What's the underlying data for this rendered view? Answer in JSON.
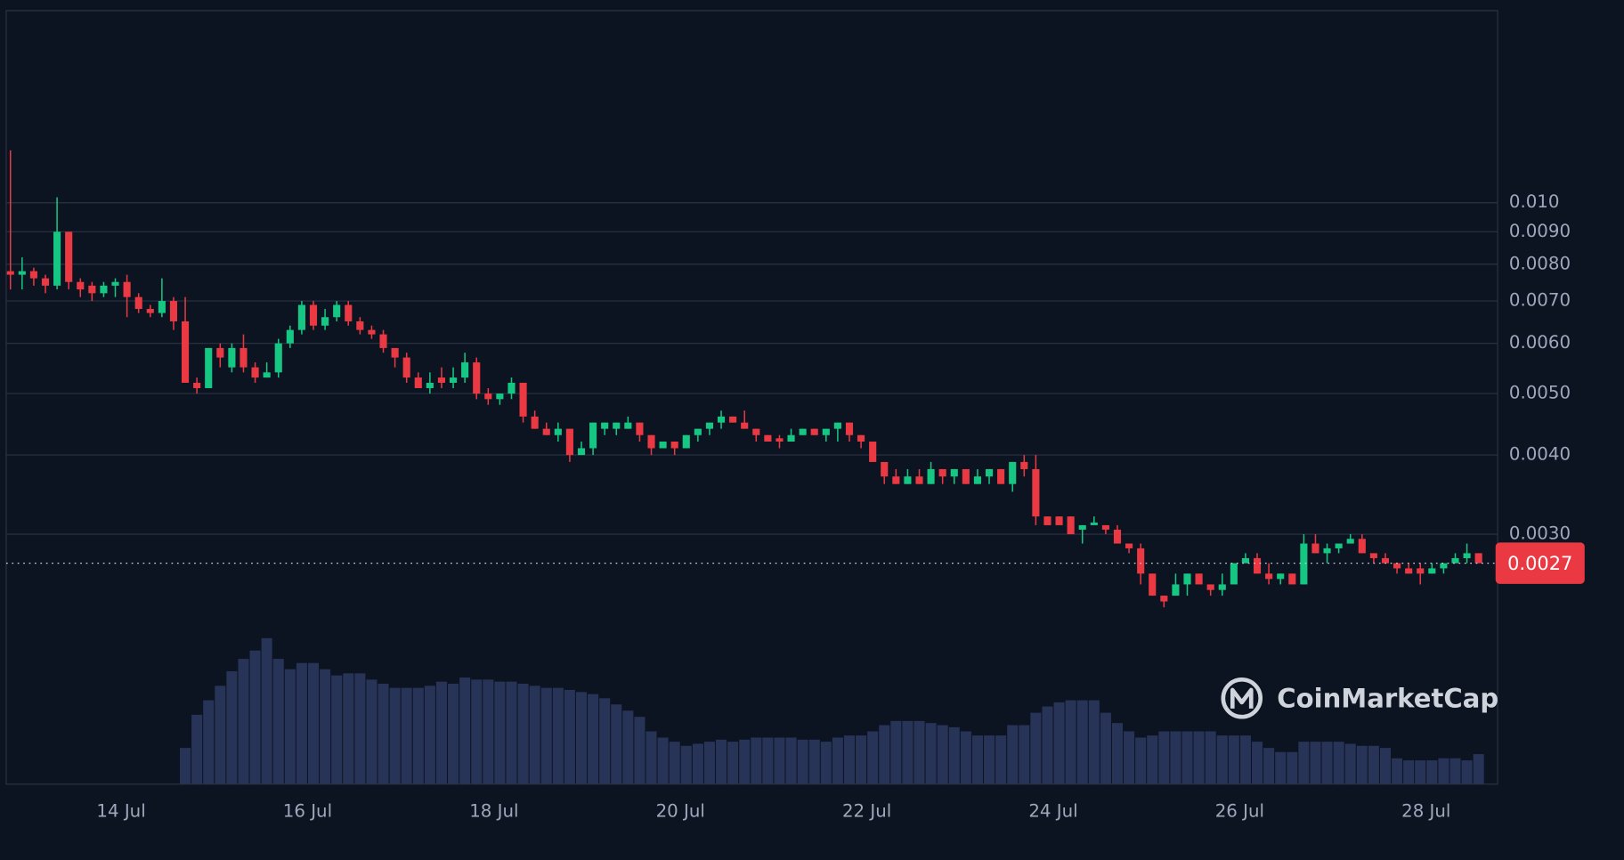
{
  "chart_data": {
    "type": "candlestick",
    "log_scale": true,
    "grid": true,
    "up_color": "#16c784",
    "down_color": "#ea3943",
    "volume_color": "#283358",
    "watermark": "CoinMarketCap",
    "last_price": 0.0027,
    "xlim": [
      12.767,
      28.767
    ],
    "ylim": [
      0.00121,
      0.0201
    ],
    "xticks": [
      {
        "value": 14,
        "label": "14 Jul"
      },
      {
        "value": 16,
        "label": "16 Jul"
      },
      {
        "value": 18,
        "label": "18 Jul"
      },
      {
        "value": 20,
        "label": "20 Jul"
      },
      {
        "value": 22,
        "label": "22 Jul"
      },
      {
        "value": 24,
        "label": "24 Jul"
      },
      {
        "value": 26,
        "label": "26 Jul"
      },
      {
        "value": 28,
        "label": "28 Jul"
      }
    ],
    "yticks": [
      {
        "value": 0.003,
        "label": "0.0030"
      },
      {
        "value": 0.004,
        "label": "0.0040"
      },
      {
        "value": 0.005,
        "label": "0.0050"
      },
      {
        "value": 0.006,
        "label": "0.0060"
      },
      {
        "value": 0.007,
        "label": "0.0070"
      },
      {
        "value": 0.008,
        "label": "0.0080"
      },
      {
        "value": 0.009,
        "label": "0.0090"
      },
      {
        "value": 0.01,
        "label": "0.010"
      }
    ],
    "x": [
      12.8125,
      12.9375,
      13.0625,
      13.1875,
      13.3125,
      13.4375,
      13.5625,
      13.6875,
      13.8125,
      13.9375,
      14.0625,
      14.1875,
      14.3125,
      14.4375,
      14.5625,
      14.6875,
      14.8125,
      14.9375,
      15.0625,
      15.1875,
      15.3125,
      15.4375,
      15.5625,
      15.6875,
      15.8125,
      15.9375,
      16.0625,
      16.1875,
      16.3125,
      16.4375,
      16.5625,
      16.6875,
      16.8125,
      16.9375,
      17.0625,
      17.1875,
      17.3125,
      17.4375,
      17.5625,
      17.6875,
      17.8125,
      17.9375,
      18.0625,
      18.1875,
      18.3125,
      18.4375,
      18.5625,
      18.6875,
      18.8125,
      18.9375,
      19.0625,
      19.1875,
      19.3125,
      19.4375,
      19.5625,
      19.6875,
      19.8125,
      19.9375,
      20.0625,
      20.1875,
      20.3125,
      20.4375,
      20.5625,
      20.6875,
      20.8125,
      20.9375,
      21.0625,
      21.1875,
      21.3125,
      21.4375,
      21.5625,
      21.6875,
      21.8125,
      21.9375,
      22.0625,
      22.1875,
      22.3125,
      22.4375,
      22.5625,
      22.6875,
      22.8125,
      22.9375,
      23.0625,
      23.1875,
      23.3125,
      23.4375,
      23.5625,
      23.6875,
      23.8125,
      23.9375,
      24.0625,
      24.1875,
      24.3125,
      24.4375,
      24.5625,
      24.6875,
      24.8125,
      24.9375,
      25.0625,
      25.1875,
      25.3125,
      25.4375,
      25.5625,
      25.6875,
      25.8125,
      25.9375,
      26.0625,
      26.1875,
      26.3125,
      26.4375,
      26.5625,
      26.6875,
      26.8125,
      26.9375,
      27.0625,
      27.1875,
      27.3125,
      27.4375,
      27.5625,
      27.6875,
      27.8125,
      27.9375,
      28.0625,
      28.1875,
      28.3125,
      28.4375,
      28.5625
    ],
    "open": [
      0.0078,
      0.0077,
      0.0078,
      0.0076,
      0.0074,
      0.009,
      0.0075,
      0.0074,
      0.0072,
      0.0074,
      0.0075,
      0.0071,
      0.0068,
      0.0067,
      0.007,
      0.0065,
      0.0052,
      0.0051,
      0.0059,
      0.0055,
      0.0059,
      0.0055,
      0.0053,
      0.0054,
      0.006,
      0.0063,
      0.0069,
      0.0064,
      0.0066,
      0.0069,
      0.0065,
      0.0063,
      0.0062,
      0.0059,
      0.0057,
      0.0053,
      0.0051,
      0.0053,
      0.0052,
      0.0053,
      0.0056,
      0.005,
      0.0049,
      0.005,
      0.0052,
      0.0046,
      0.0044,
      0.0043,
      0.0044,
      0.004,
      0.0041,
      0.0044,
      0.0044,
      0.0044,
      0.0045,
      0.0043,
      0.0041,
      0.0042,
      0.0041,
      0.0043,
      0.0044,
      0.0045,
      0.0046,
      0.0045,
      0.0044,
      0.0043,
      0.00425,
      0.0042,
      0.0043,
      0.0044,
      0.0043,
      0.0044,
      0.0045,
      0.0043,
      0.0042,
      0.0039,
      0.0037,
      0.0036,
      0.0037,
      0.0036,
      0.0038,
      0.0037,
      0.0038,
      0.0036,
      0.0037,
      0.0038,
      0.0036,
      0.0039,
      0.0038,
      0.0032,
      0.0032,
      0.0032,
      0.00305,
      0.0031,
      0.0031,
      0.00305,
      0.0029,
      0.00285,
      0.0026,
      0.0024,
      0.0024,
      0.0025,
      0.0026,
      0.0025,
      0.00245,
      0.0025,
      0.0027,
      0.00275,
      0.0026,
      0.00255,
      0.0026,
      0.0025,
      0.0029,
      0.0028,
      0.00285,
      0.0029,
      0.00295,
      0.0028,
      0.00275,
      0.0027,
      0.00265,
      0.00265,
      0.0026,
      0.00265,
      0.0027,
      0.00275,
      0.0028
    ],
    "high": [
      0.0121,
      0.0082,
      0.0079,
      0.0077,
      0.0102,
      0.009,
      0.0076,
      0.0075,
      0.0075,
      0.0076,
      0.0077,
      0.0072,
      0.0069,
      0.0076,
      0.0071,
      0.0071,
      0.0053,
      0.0059,
      0.006,
      0.006,
      0.0062,
      0.0056,
      0.0056,
      0.0061,
      0.0064,
      0.007,
      0.007,
      0.0068,
      0.007,
      0.007,
      0.0066,
      0.0064,
      0.0063,
      0.0059,
      0.0058,
      0.0054,
      0.0054,
      0.0055,
      0.0055,
      0.0058,
      0.0057,
      0.0051,
      0.005,
      0.0053,
      0.0052,
      0.0047,
      0.0045,
      0.0045,
      0.0044,
      0.0042,
      0.0045,
      0.0045,
      0.0045,
      0.0046,
      0.0045,
      0.0043,
      0.0042,
      0.0042,
      0.0043,
      0.0044,
      0.0045,
      0.0047,
      0.0046,
      0.0047,
      0.0044,
      0.0043,
      0.0043,
      0.0044,
      0.0044,
      0.0044,
      0.0044,
      0.0045,
      0.0045,
      0.0043,
      0.0042,
      0.0039,
      0.0038,
      0.0038,
      0.0038,
      0.0039,
      0.0038,
      0.0038,
      0.0038,
      0.0038,
      0.0038,
      0.0038,
      0.0039,
      0.004,
      0.004,
      0.0032,
      0.0032,
      0.0032,
      0.0031,
      0.0032,
      0.0031,
      0.0031,
      0.0029,
      0.0029,
      0.0026,
      0.0024,
      0.0026,
      0.0026,
      0.0026,
      0.0025,
      0.0026,
      0.0027,
      0.0028,
      0.0028,
      0.0027,
      0.0026,
      0.0026,
      0.003,
      0.003,
      0.0029,
      0.0029,
      0.003,
      0.003,
      0.0028,
      0.0028,
      0.0027,
      0.0027,
      0.0027,
      0.0027,
      0.0027,
      0.0028,
      0.0029,
      0.0028
    ],
    "low": [
      0.0073,
      0.0073,
      0.0074,
      0.0072,
      0.0073,
      0.0073,
      0.0071,
      0.007,
      0.0071,
      0.0071,
      0.0066,
      0.0067,
      0.0066,
      0.0066,
      0.0063,
      0.0052,
      0.005,
      0.0051,
      0.0055,
      0.0054,
      0.0054,
      0.0052,
      0.0053,
      0.0053,
      0.0059,
      0.0062,
      0.0063,
      0.0063,
      0.0065,
      0.0064,
      0.0062,
      0.0061,
      0.0058,
      0.0055,
      0.0052,
      0.0051,
      0.005,
      0.0051,
      0.0051,
      0.0052,
      0.0049,
      0.0048,
      0.0048,
      0.0049,
      0.0045,
      0.0044,
      0.0043,
      0.0042,
      0.0039,
      0.004,
      0.004,
      0.0043,
      0.0043,
      0.0044,
      0.0042,
      0.004,
      0.0041,
      0.004,
      0.0041,
      0.0042,
      0.0043,
      0.0044,
      0.0045,
      0.0044,
      0.0042,
      0.0042,
      0.0041,
      0.0042,
      0.0043,
      0.0043,
      0.0042,
      0.0042,
      0.0042,
      0.0041,
      0.0039,
      0.0036,
      0.0036,
      0.0036,
      0.0036,
      0.0036,
      0.0036,
      0.0036,
      0.0036,
      0.0036,
      0.0036,
      0.0036,
      0.0035,
      0.0037,
      0.0031,
      0.0031,
      0.0031,
      0.003,
      0.0029,
      0.0031,
      0.003,
      0.0029,
      0.0028,
      0.0025,
      0.0024,
      0.0023,
      0.0024,
      0.0024,
      0.0025,
      0.0024,
      0.0024,
      0.0025,
      0.0027,
      0.0026,
      0.0025,
      0.0025,
      0.0025,
      0.0025,
      0.0028,
      0.0027,
      0.0028,
      0.0029,
      0.0028,
      0.0027,
      0.0027,
      0.0026,
      0.0026,
      0.0025,
      0.0026,
      0.0026,
      0.0027,
      0.0027,
      0.0027
    ],
    "close": [
      0.0077,
      0.0078,
      0.0076,
      0.0074,
      0.009,
      0.0075,
      0.0073,
      0.0072,
      0.0074,
      0.0075,
      0.0071,
      0.0068,
      0.0067,
      0.007,
      0.0065,
      0.0052,
      0.0051,
      0.0059,
      0.0057,
      0.0059,
      0.0055,
      0.0053,
      0.0054,
      0.006,
      0.0063,
      0.0069,
      0.0064,
      0.0066,
      0.0069,
      0.0065,
      0.0063,
      0.0062,
      0.0059,
      0.0057,
      0.0053,
      0.0051,
      0.0052,
      0.0052,
      0.0053,
      0.0056,
      0.005,
      0.0049,
      0.005,
      0.0052,
      0.0046,
      0.0044,
      0.0043,
      0.0044,
      0.004,
      0.0041,
      0.0045,
      0.0045,
      0.0045,
      0.0045,
      0.0043,
      0.0041,
      0.0042,
      0.0041,
      0.0043,
      0.0044,
      0.0045,
      0.0046,
      0.0045,
      0.0044,
      0.0043,
      0.0042,
      0.0042,
      0.0043,
      0.0044,
      0.0043,
      0.0044,
      0.0045,
      0.0043,
      0.0042,
      0.0039,
      0.0037,
      0.0036,
      0.0037,
      0.0036,
      0.0038,
      0.0037,
      0.0038,
      0.0036,
      0.0037,
      0.0038,
      0.0036,
      0.0039,
      0.0038,
      0.0032,
      0.0031,
      0.0031,
      0.003,
      0.0031,
      0.00313,
      0.00305,
      0.0029,
      0.00285,
      0.0026,
      0.0024,
      0.00235,
      0.0025,
      0.0026,
      0.0025,
      0.00245,
      0.0025,
      0.0027,
      0.00275,
      0.0026,
      0.00255,
      0.0026,
      0.0025,
      0.0029,
      0.0028,
      0.00285,
      0.0029,
      0.00295,
      0.0028,
      0.00275,
      0.0027,
      0.00265,
      0.0026,
      0.0026,
      0.00265,
      0.0027,
      0.00275,
      0.0028,
      0.0027
    ],
    "volume": [
      null,
      null,
      null,
      null,
      null,
      null,
      null,
      null,
      null,
      null,
      null,
      null,
      null,
      null,
      null,
      35,
      67,
      81,
      95,
      109,
      121,
      129,
      141,
      121,
      111,
      117,
      117,
      111,
      105,
      107,
      107,
      101,
      97,
      93,
      93,
      93,
      95,
      99,
      97,
      103,
      101,
      101,
      99,
      99,
      97,
      95,
      93,
      93,
      91,
      89,
      87,
      83,
      77,
      71,
      65,
      51,
      45,
      41,
      37,
      39,
      41,
      43,
      41,
      43,
      45,
      45,
      45,
      45,
      43,
      43,
      41,
      45,
      47,
      47,
      51,
      57,
      61,
      61,
      61,
      59,
      57,
      55,
      51,
      47,
      47,
      47,
      57,
      57,
      69,
      75,
      79,
      81,
      81,
      81,
      69,
      59,
      51,
      45,
      47,
      51,
      51,
      51,
      51,
      51,
      47,
      47,
      47,
      41,
      35,
      31,
      31,
      41,
      41,
      41,
      41,
      39,
      37,
      37,
      35,
      25,
      23,
      23,
      23,
      25,
      25,
      23,
      29
    ]
  }
}
